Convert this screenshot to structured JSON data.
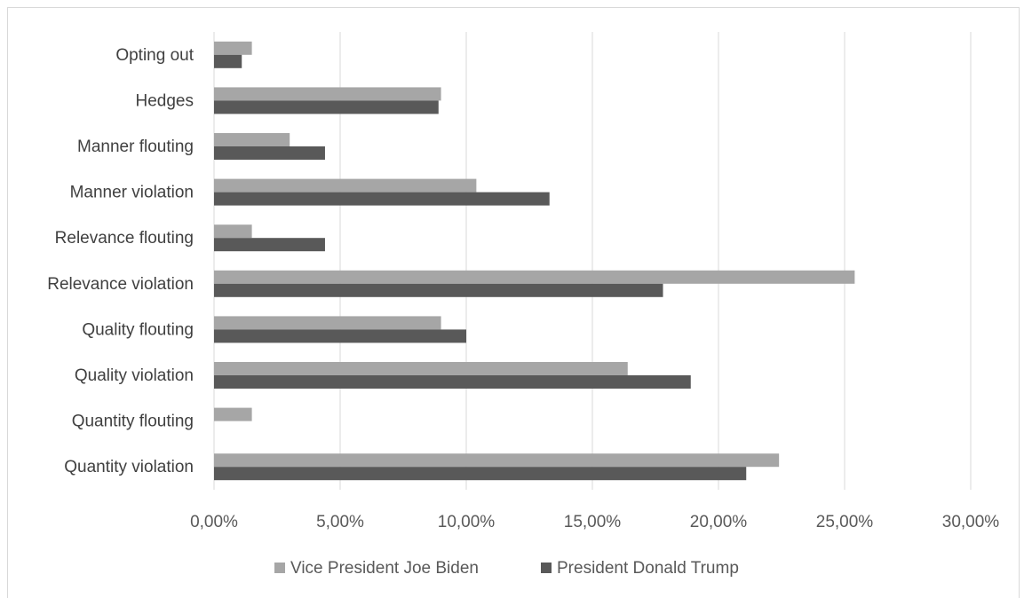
{
  "chart_data": {
    "type": "bar",
    "orientation": "horizontal",
    "categories": [
      "Quantity violation",
      "Quantity flouting",
      "Quality violation",
      "Quality flouting",
      "Relevance violation",
      "Relevance flouting",
      "Manner violation",
      "Manner flouting",
      "Hedges",
      "Opting out"
    ],
    "series": [
      {
        "name": "Vice President Joe Biden",
        "color": "#a6a6a6",
        "values": [
          22.4,
          1.5,
          16.4,
          9.0,
          25.4,
          1.5,
          10.4,
          3.0,
          9.0,
          1.5
        ]
      },
      {
        "name": "President Donald Trump",
        "color": "#595959",
        "values": [
          21.1,
          0.0,
          18.9,
          10.0,
          17.8,
          4.4,
          13.3,
          4.4,
          8.9,
          1.1
        ]
      }
    ],
    "xlim": [
      0,
      30
    ],
    "xticks": [
      "0,00%",
      "5,00%",
      "10,00%",
      "15,00%",
      "20,00%",
      "25,00%",
      "30,00%"
    ],
    "grid": true,
    "legend": "bottom",
    "title": "",
    "xlabel": "",
    "ylabel": ""
  }
}
